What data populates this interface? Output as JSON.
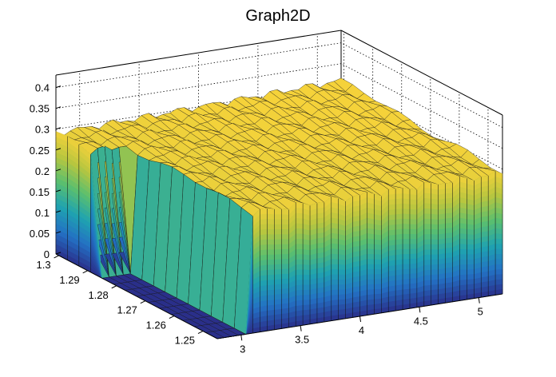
{
  "chart_data": {
    "type": "surface3d",
    "title": "Graph2D",
    "xlabel": "",
    "ylabel": "",
    "zlabel": "",
    "xlim": [
      2.8,
      5.2
    ],
    "ylim": [
      1.245,
      1.301
    ],
    "zlim": [
      0,
      0.43
    ],
    "x_ticks": [
      3,
      3.5,
      4,
      4.5,
      5
    ],
    "x_tick_labels": [
      "3",
      "3.5",
      "4",
      "4.5",
      "5"
    ],
    "y_ticks": [
      1.25,
      1.26,
      1.27,
      1.28,
      1.29,
      1.3
    ],
    "y_tick_labels": [
      "1.25",
      "1.26",
      "1.27",
      "1.28",
      "1.29",
      "1.3"
    ],
    "z_ticks": [
      0,
      0.05,
      0.1,
      0.15,
      0.2,
      0.25,
      0.3,
      0.35,
      0.4
    ],
    "z_tick_labels": [
      "0",
      "0.05",
      "0.1",
      "0.15",
      "0.2",
      "0.25",
      "0.3",
      "0.35",
      "0.4"
    ],
    "grid": true,
    "palette": "viridis-like (blue to green to yellow)",
    "palette_colors": [
      "#2a2f8a",
      "#2371c4",
      "#1fa3b0",
      "#5bbf6e",
      "#b8c63f",
      "#f5d23a"
    ],
    "surface": {
      "description": "Flat top plateau with a drop to zero at the front-left corner",
      "x_range": [
        2.8,
        5.2
      ],
      "y_range": [
        1.245,
        1.301
      ],
      "z_plateau_back_left": 0.29,
      "z_plateau_back_right": 0.31,
      "z_plateau_front_right": 0.29,
      "z_plateau_max": 0.3,
      "zero_region": {
        "x_min": 2.8,
        "x_max": 3.05,
        "y_min": 1.245,
        "y_max": 1.285
      },
      "grid_cells_x": 40,
      "grid_cells_y": 14
    }
  }
}
